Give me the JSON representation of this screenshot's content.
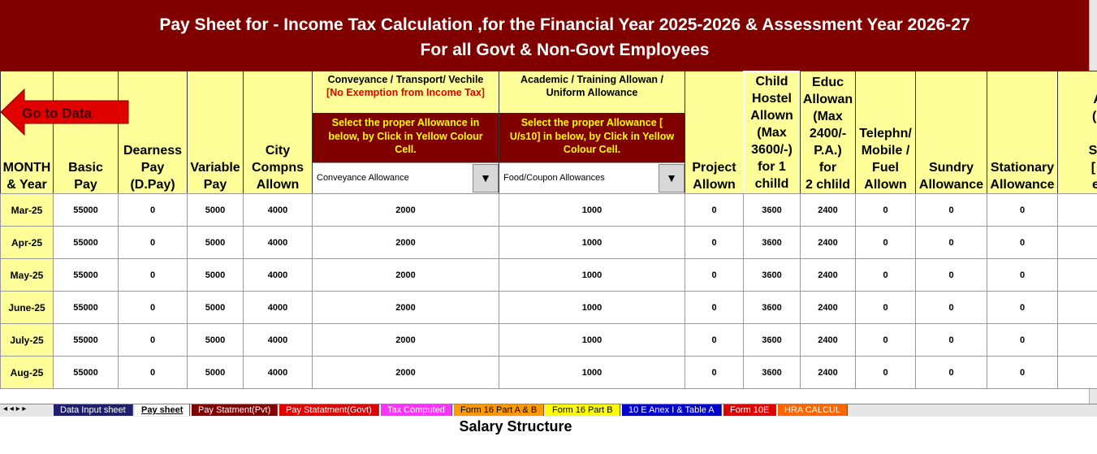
{
  "title": "Pay Sheet for - Income Tax Calculation ,for the Financial Year 2025-2026 &  Assessment Year 2026-27",
  "subtitle": "For all Govt & Non-Govt Employees",
  "go_to_data": "Go to Data",
  "headers": [
    [
      "MONTH",
      "& Year"
    ],
    [
      "Basic",
      "Pay"
    ],
    [
      "Dearness",
      "Pay",
      "(D.Pay)"
    ],
    [
      "Variable",
      "Pay"
    ],
    [
      "City",
      "Compns",
      "Allown"
    ],
    {
      "heading": "Conveyance / Transport/ Vechile",
      "note": "[No Exemption from Income Tax]",
      "instruction": "Select the proper Allowance  in below, by Click in Yellow Colour Cell.",
      "selected": "Conveyance Allowance"
    },
    {
      "heading": "Academic / Training Allowan / Uniform Allowance",
      "instruction": "Select the proper Allowance [ U/s10] in below, by Click in Yellow Colour Cell.",
      "selected": "Food/Coupon Allowances"
    },
    [
      "Project",
      "Allown"
    ],
    [
      "Child",
      "Hostel",
      "Allown",
      "(Max",
      "3600/-)",
      "for 1",
      "chilld"
    ],
    [
      "Educ",
      "Allowan",
      "(Max",
      "2400/-",
      "P.A.)",
      "for",
      "2 chlild"
    ],
    [
      "Telephn/",
      "Mobile /",
      "Fuel",
      "Allown"
    ],
    [
      "Sundry",
      "Allowance"
    ],
    [
      "Stationary",
      "Allowance"
    ],
    [
      "Ot",
      "Allo",
      "(incl",
      "F",
      "Surre",
      "[ For",
      "emp"
    ]
  ],
  "rows": [
    [
      "Mar-25",
      55000,
      0,
      5000,
      4000,
      2000,
      1000,
      0,
      3600,
      2400,
      0,
      0,
      0
    ],
    [
      "Apr-25",
      55000,
      0,
      5000,
      4000,
      2000,
      1000,
      0,
      3600,
      2400,
      0,
      0,
      0
    ],
    [
      "May-25",
      55000,
      0,
      5000,
      4000,
      2000,
      1000,
      0,
      3600,
      2400,
      0,
      0,
      0
    ],
    [
      "June-25",
      55000,
      0,
      5000,
      4000,
      2000,
      1000,
      0,
      3600,
      2400,
      0,
      0,
      0
    ],
    [
      "July-25",
      55000,
      0,
      5000,
      4000,
      2000,
      1000,
      0,
      3600,
      2400,
      0,
      0,
      0
    ],
    [
      "Aug-25",
      55000,
      0,
      5000,
      4000,
      2000,
      1000,
      0,
      3600,
      2400,
      0,
      0,
      0
    ]
  ],
  "tabs": [
    "Data Input sheet",
    "Pay sheet",
    "Pay Statment(Pvt)",
    "Pay Statatment(Govt)",
    "Tax Computed",
    "Form 16 Part A & B",
    "Form 16 Part B",
    "10 E Anex I & Table A",
    "Form 10E",
    "HRA CALCUL"
  ],
  "caption": "Salary Structure"
}
